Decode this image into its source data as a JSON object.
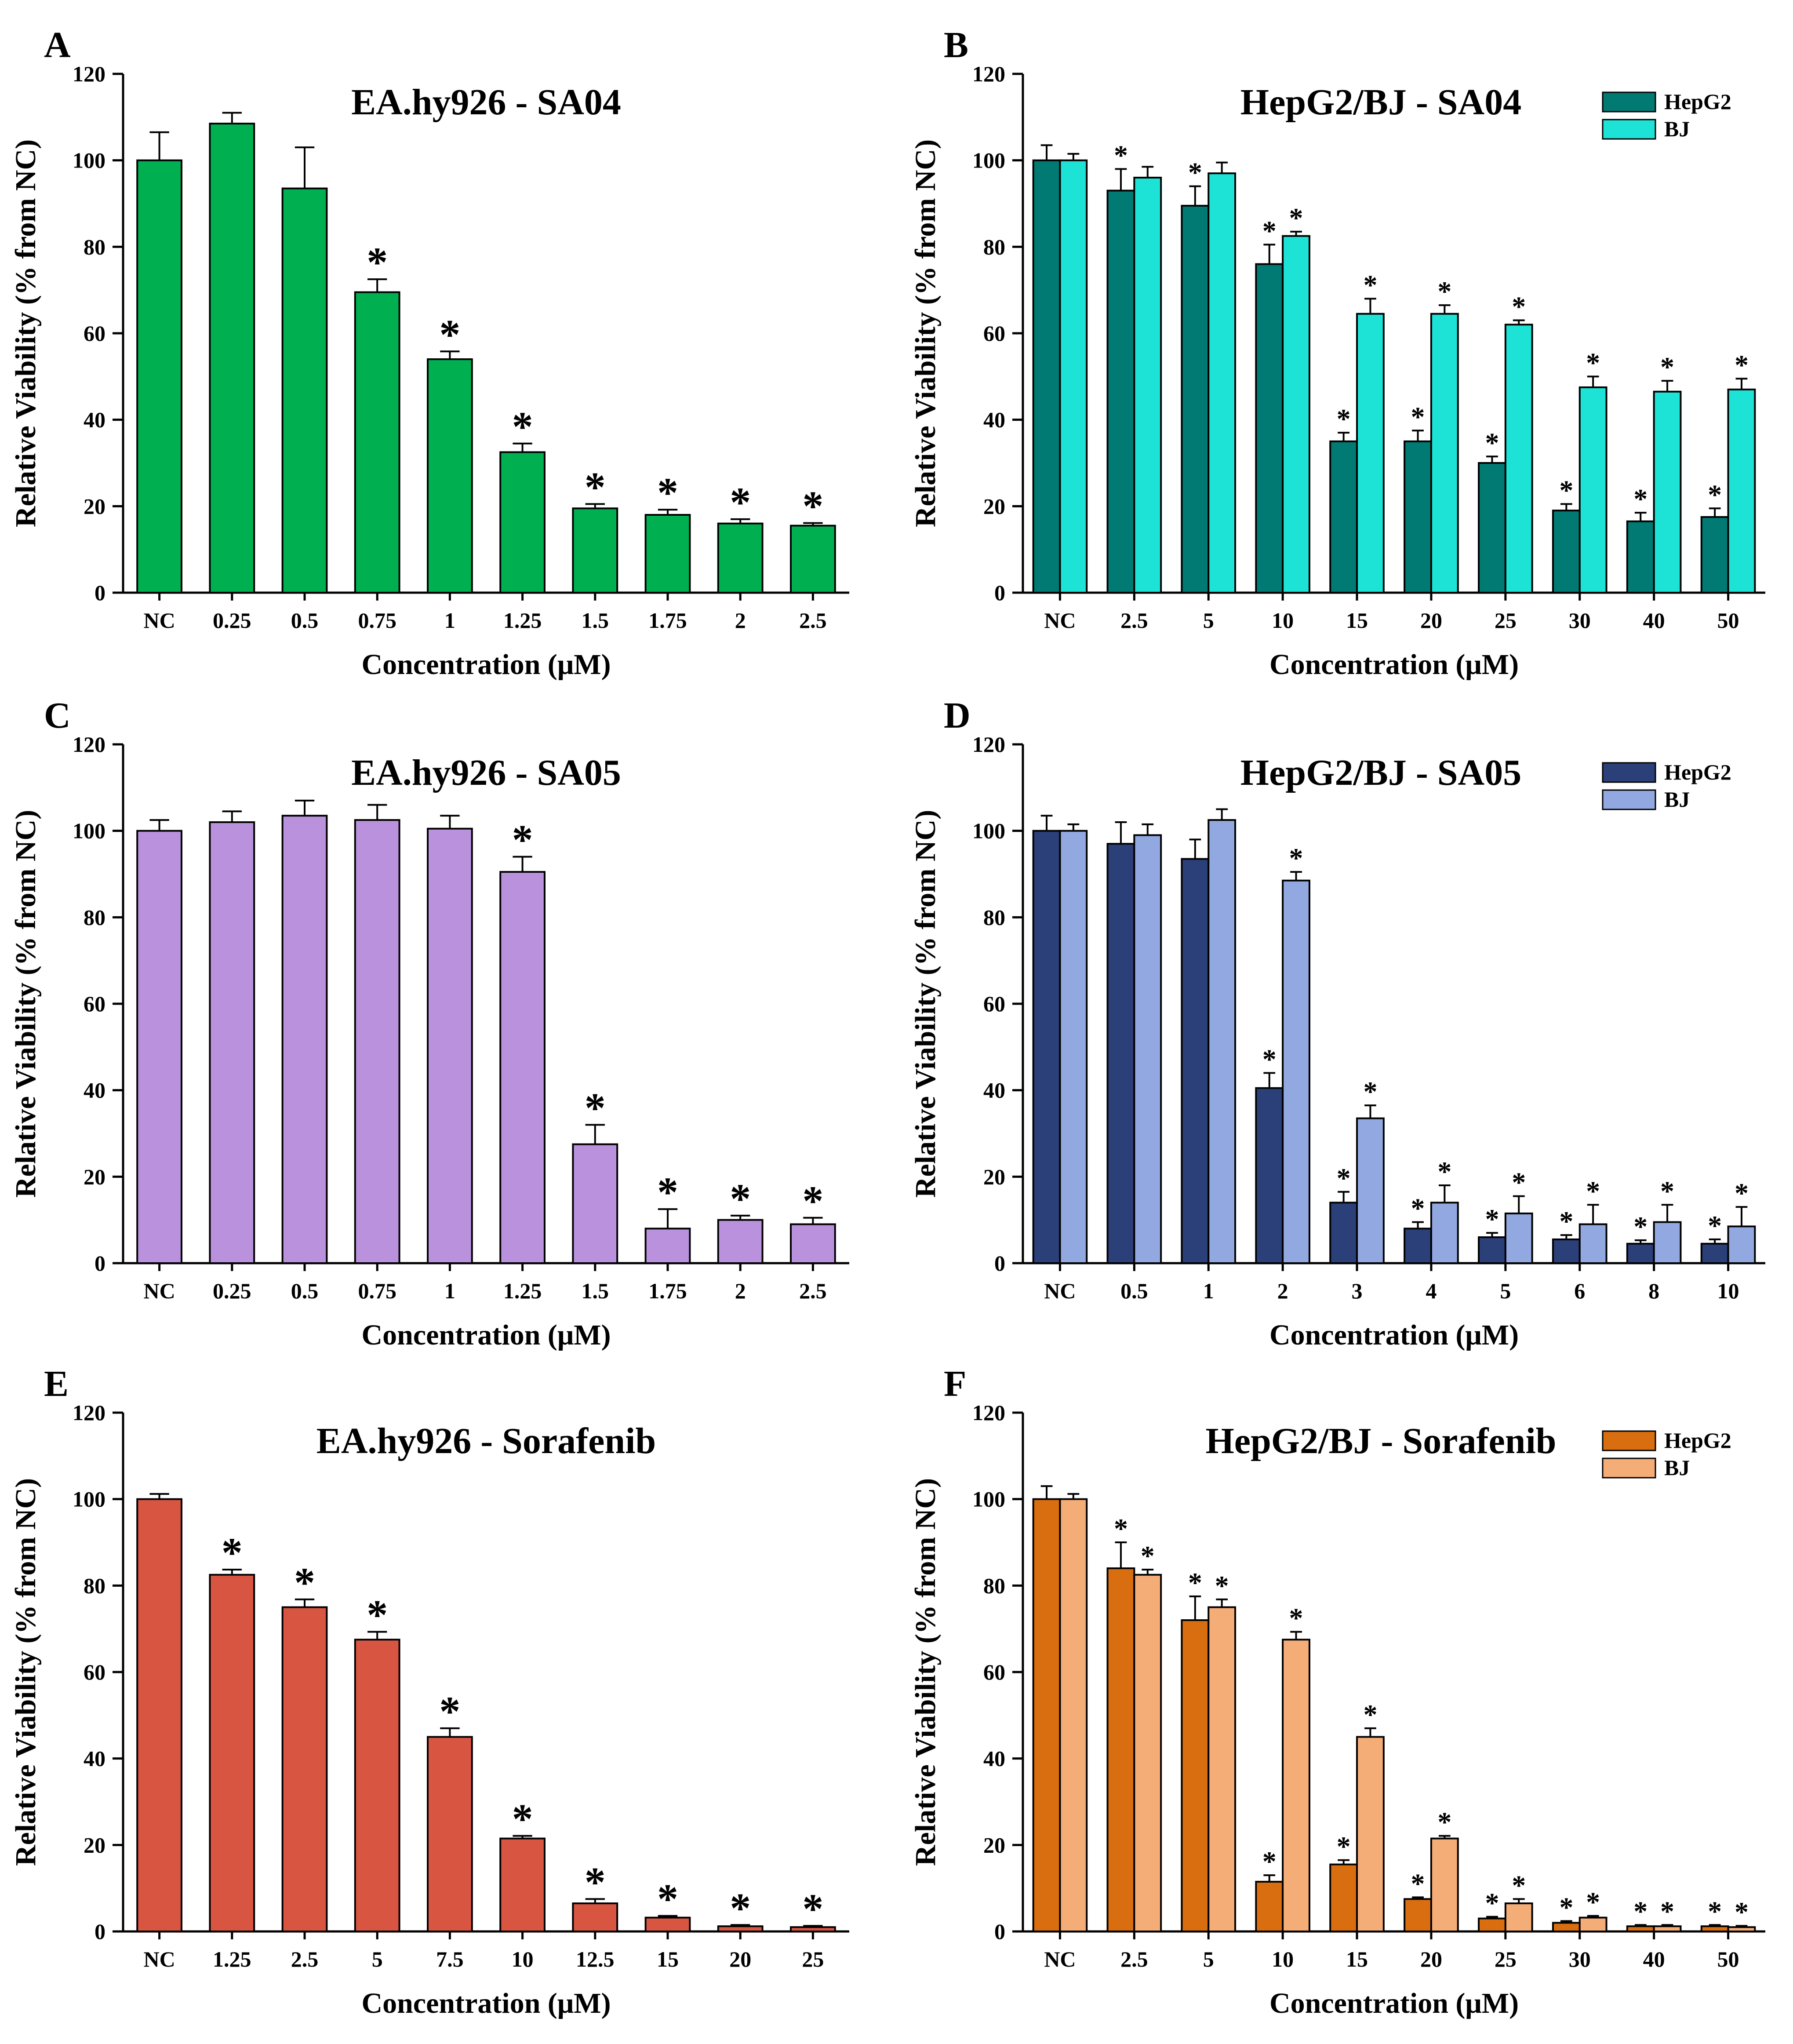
{
  "figure": {
    "xlabel": "Concentration (μM)",
    "ylabel": "Relative Viability (% from NC)",
    "significance_marker": "*"
  },
  "chart_data": [
    {
      "panel": "A",
      "type": "bar",
      "title": "EA.hy926 - SA04",
      "xlabel": "Concentration (μM)",
      "ylabel": "Relative Viability (% from NC)",
      "ylim": [
        0,
        120
      ],
      "yticks": [
        0,
        20,
        40,
        60,
        80,
        100,
        120
      ],
      "grid": false,
      "categories": [
        "NC",
        "0.25",
        "0.5",
        "0.75",
        "1",
        "1.25",
        "1.5",
        "1.75",
        "2",
        "2.5"
      ],
      "series": [
        {
          "name": "EA.hy926",
          "color": "#00b050",
          "values": [
            100,
            108.5,
            93.5,
            69.5,
            54,
            32.5,
            19.5,
            18,
            16,
            15.5
          ],
          "errors": [
            6.5,
            2.5,
            9.5,
            3,
            1.8,
            2,
            1,
            1.2,
            1,
            0.6
          ],
          "significant": [
            false,
            false,
            false,
            true,
            true,
            true,
            true,
            true,
            true,
            true
          ]
        }
      ]
    },
    {
      "panel": "B",
      "type": "bar",
      "title": "HepG2/BJ - SA04",
      "xlabel": "Concentration (μM)",
      "ylabel": "Relative Viability (% from NC)",
      "ylim": [
        0,
        120
      ],
      "yticks": [
        0,
        20,
        40,
        60,
        80,
        100,
        120
      ],
      "grid": false,
      "legend": "top-right",
      "categories": [
        "NC",
        "2.5",
        "5",
        "10",
        "15",
        "20",
        "25",
        "30",
        "40",
        "50"
      ],
      "series": [
        {
          "name": "HepG2",
          "color": "#007a72",
          "values": [
            100,
            93,
            89.5,
            76,
            35,
            35,
            30,
            19,
            16.5,
            17.5
          ],
          "errors": [
            3.5,
            5,
            4.5,
            4.5,
            2,
            2.5,
            1.5,
            1.5,
            2,
            2
          ],
          "significant": [
            false,
            true,
            true,
            true,
            true,
            true,
            true,
            true,
            true,
            true
          ]
        },
        {
          "name": "BJ",
          "color": "#1de3d6",
          "values": [
            100,
            96,
            97,
            82.5,
            64.5,
            64.5,
            62,
            47.5,
            46.5,
            47
          ],
          "errors": [
            1.5,
            2.5,
            2.5,
            1,
            3.5,
            2,
            1,
            2.5,
            2.5,
            2.5
          ],
          "significant": [
            false,
            false,
            false,
            true,
            true,
            true,
            true,
            true,
            true,
            true
          ]
        }
      ]
    },
    {
      "panel": "C",
      "type": "bar",
      "title": "EA.hy926 - SA05",
      "xlabel": "Concentration (μM)",
      "ylabel": "Relative Viability (% from NC)",
      "ylim": [
        0,
        120
      ],
      "yticks": [
        0,
        20,
        40,
        60,
        80,
        100,
        120
      ],
      "grid": false,
      "categories": [
        "NC",
        "0.25",
        "0.5",
        "0.75",
        "1",
        "1.25",
        "1.5",
        "1.75",
        "2",
        "2.5"
      ],
      "series": [
        {
          "name": "EA.hy926",
          "color": "#b991dd",
          "values": [
            100,
            102,
            103.5,
            102.5,
            100.5,
            90.5,
            27.5,
            8,
            10,
            9
          ],
          "errors": [
            2.5,
            2.5,
            3.5,
            3.5,
            3,
            3.5,
            4.5,
            4.5,
            1,
            1.5
          ],
          "significant": [
            false,
            false,
            false,
            false,
            false,
            true,
            true,
            true,
            true,
            true
          ]
        }
      ]
    },
    {
      "panel": "D",
      "type": "bar",
      "title": "HepG2/BJ - SA05",
      "xlabel": "Concentration (μM)",
      "ylabel": "Relative Viability (% from NC)",
      "ylim": [
        0,
        120
      ],
      "yticks": [
        0,
        20,
        40,
        60,
        80,
        100,
        120
      ],
      "grid": false,
      "legend": "top-right",
      "categories": [
        "NC",
        "0.5",
        "1",
        "2",
        "3",
        "4",
        "5",
        "6",
        "8",
        "10"
      ],
      "series": [
        {
          "name": "HepG2",
          "color": "#2b3f78",
          "values": [
            100,
            97,
            93.5,
            40.5,
            14,
            8,
            6,
            5.5,
            4.5,
            4.5
          ],
          "errors": [
            3.5,
            5,
            4.5,
            3.5,
            2.5,
            1.5,
            1,
            1,
            0.8,
            1
          ],
          "significant": [
            false,
            false,
            false,
            true,
            true,
            true,
            true,
            true,
            true,
            true
          ]
        },
        {
          "name": "BJ",
          "color": "#92a8e0",
          "values": [
            100,
            99,
            102.5,
            88.5,
            33.5,
            14,
            11.5,
            9,
            9.5,
            8.5
          ],
          "errors": [
            1.5,
            2.5,
            2.5,
            2,
            3,
            4,
            4,
            4.5,
            4,
            4.5
          ],
          "significant": [
            false,
            false,
            false,
            true,
            true,
            true,
            true,
            true,
            true,
            true
          ]
        }
      ]
    },
    {
      "panel": "E",
      "type": "bar",
      "title": "EA.hy926 - Sorafenib",
      "xlabel": "Concentration (μM)",
      "ylabel": "Relative Viability (% from NC)",
      "ylim": [
        0,
        120
      ],
      "yticks": [
        0,
        20,
        40,
        60,
        80,
        100,
        120
      ],
      "grid": false,
      "categories": [
        "NC",
        "1.25",
        "2.5",
        "5",
        "7.5",
        "10",
        "12.5",
        "15",
        "20",
        "25"
      ],
      "series": [
        {
          "name": "EA.hy926",
          "color": "#d85542",
          "values": [
            100,
            82.5,
            75,
            67.5,
            45,
            21.5,
            6.5,
            3.2,
            1.2,
            1
          ],
          "errors": [
            1.2,
            1.2,
            1.8,
            1.8,
            2,
            0.6,
            1,
            0.4,
            0.3,
            0.3
          ],
          "significant": [
            false,
            true,
            true,
            true,
            true,
            true,
            true,
            true,
            true,
            true
          ]
        }
      ]
    },
    {
      "panel": "F",
      "type": "bar",
      "title": "HepG2/BJ - Sorafenib",
      "xlabel": "Concentration (μM)",
      "ylabel": "Relative Viability (% from NC)",
      "ylim": [
        0,
        120
      ],
      "yticks": [
        0,
        20,
        40,
        60,
        80,
        100,
        120
      ],
      "grid": false,
      "legend": "top-right",
      "categories": [
        "NC",
        "2.5",
        "5",
        "10",
        "15",
        "20",
        "25",
        "30",
        "40",
        "50"
      ],
      "series": [
        {
          "name": "HepG2",
          "color": "#d96e10",
          "values": [
            100,
            84,
            72,
            11.5,
            15.5,
            7.5,
            3,
            2,
            1.2,
            1.2
          ],
          "errors": [
            3,
            6,
            5.5,
            1.5,
            1,
            0.4,
            0.4,
            0.4,
            0.3,
            0.3
          ],
          "significant": [
            false,
            true,
            true,
            true,
            true,
            true,
            true,
            true,
            true,
            true
          ]
        },
        {
          "name": "BJ",
          "color": "#f5ad78",
          "values": [
            100,
            82.5,
            75,
            67.5,
            45,
            21.5,
            6.5,
            3.2,
            1.2,
            1
          ],
          "errors": [
            1.2,
            1.2,
            1.8,
            1.8,
            2,
            0.6,
            1,
            0.4,
            0.3,
            0.3
          ],
          "significant": [
            false,
            true,
            true,
            true,
            true,
            true,
            true,
            true,
            true,
            true
          ]
        }
      ]
    }
  ]
}
